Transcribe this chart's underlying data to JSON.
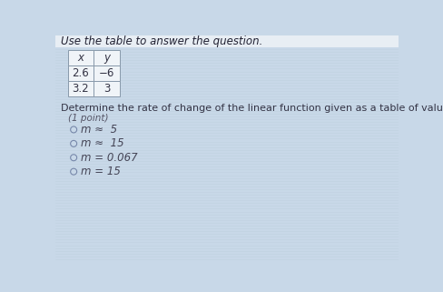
{
  "title": "Use the table to answer the question.",
  "table_headers": [
    "x",
    "y"
  ],
  "table_rows": [
    [
      "2.6",
      "−6"
    ],
    [
      "3.2",
      "3"
    ]
  ],
  "question": "Determine the rate of change of the linear function given as a table of values",
  "point_label": "(1 point)",
  "options": [
    "m ≈  5",
    "m ≈  15",
    "m = 0.067",
    "m = 15"
  ],
  "bg_color": "#c8d8e8",
  "line_color": "#b8ccd8",
  "text_color": "#444455",
  "table_bg": "#f0f4f8",
  "title_fontsize": 8.5,
  "question_fontsize": 8.0,
  "option_fontsize": 8.5
}
